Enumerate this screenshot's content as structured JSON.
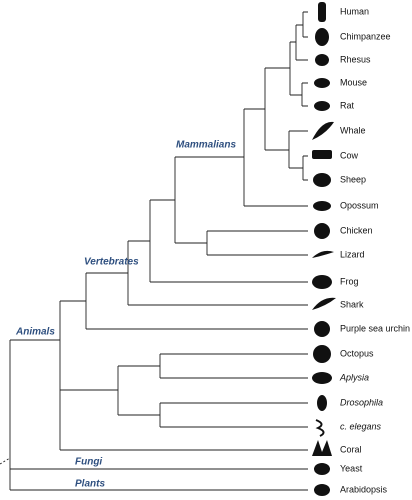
{
  "clades": [
    "Mammalians",
    "Vertebrates",
    "Animals",
    "Fungi",
    "Plants"
  ],
  "leaves": [
    "Human",
    "Chimpanzee",
    "Rhesus",
    "Mouse",
    "Rat",
    "Whale",
    "Cow",
    "Sheep",
    "Opossum",
    "Chicken",
    "Lizard",
    "Frog",
    "Shark",
    "Purple sea urchin",
    "Octopus",
    "Aplysia",
    "Drosophila",
    "c. elegans",
    "Coral",
    "Yeast",
    "Arabidopsis"
  ]
}
